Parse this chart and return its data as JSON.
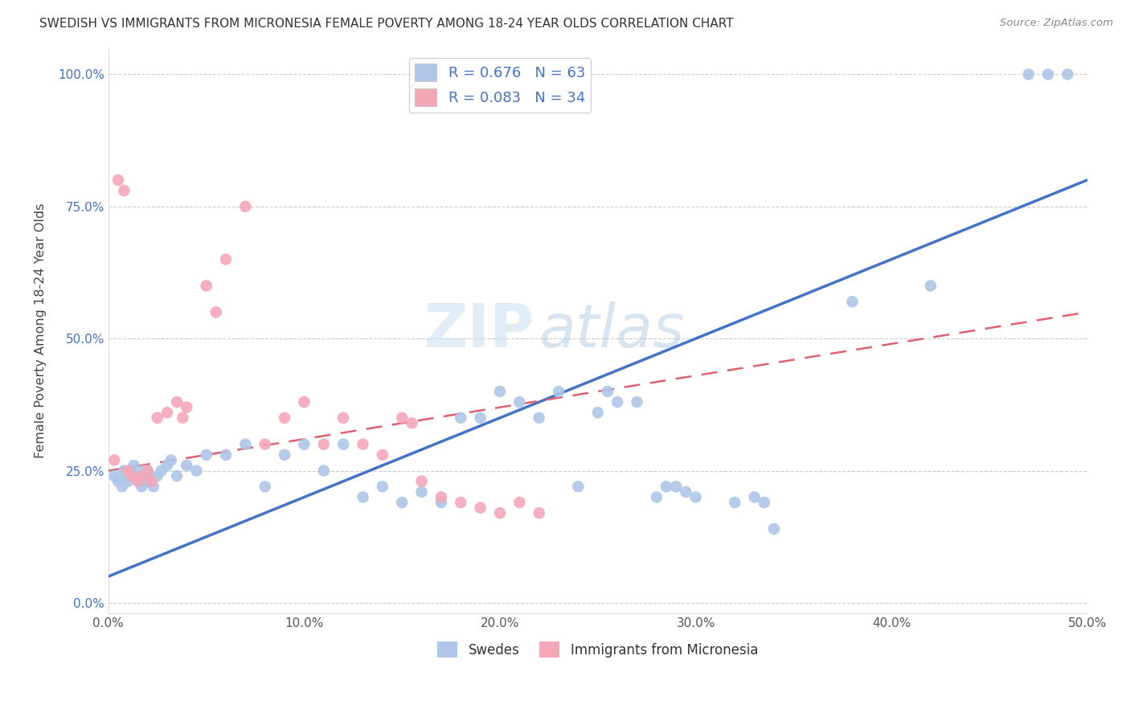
{
  "title": "SWEDISH VS IMMIGRANTS FROM MICRONESIA FEMALE POVERTY AMONG 18-24 YEAR OLDS CORRELATION CHART",
  "source": "Source: ZipAtlas.com",
  "ylabel": "Female Poverty Among 18-24 Year Olds",
  "x_min": 0.0,
  "x_max": 0.5,
  "y_ticks": [
    0.0,
    0.25,
    0.5,
    0.75,
    1.0
  ],
  "y_tick_labels": [
    "0.0%",
    "25.0%",
    "50.0%",
    "75.0%",
    "100.0%"
  ],
  "x_ticks": [
    0.0,
    0.1,
    0.2,
    0.3,
    0.4,
    0.5
  ],
  "x_tick_labels": [
    "0.0%",
    "10.0%",
    "20.0%",
    "30.0%",
    "40.0%",
    "50.0%"
  ],
  "swedes_color": "#aec6e8",
  "micronesia_color": "#f4a7b9",
  "swedes_line_color": "#4472c4",
  "micronesia_line_color": "#e06070",
  "R_swedes": 0.676,
  "N_swedes": 63,
  "R_micronesia": 0.083,
  "N_micronesia": 34,
  "watermark_zip": "ZIP",
  "watermark_atlas": "atlas",
  "legend_label_swedes": "Swedes",
  "legend_label_micronesia": "Immigrants from Micronesia",
  "swedes_x": [
    0.003,
    0.005,
    0.007,
    0.008,
    0.009,
    0.01,
    0.011,
    0.012,
    0.013,
    0.015,
    0.016,
    0.017,
    0.018,
    0.019,
    0.02,
    0.021,
    0.022,
    0.023,
    0.025,
    0.027,
    0.03,
    0.032,
    0.035,
    0.04,
    0.045,
    0.05,
    0.06,
    0.07,
    0.08,
    0.09,
    0.1,
    0.11,
    0.12,
    0.13,
    0.14,
    0.15,
    0.16,
    0.17,
    0.18,
    0.19,
    0.2,
    0.21,
    0.22,
    0.23,
    0.24,
    0.25,
    0.255,
    0.26,
    0.27,
    0.28,
    0.285,
    0.29,
    0.295,
    0.3,
    0.32,
    0.33,
    0.335,
    0.34,
    0.38,
    0.42,
    0.47,
    0.48,
    0.49
  ],
  "swedes_y": [
    0.24,
    0.23,
    0.22,
    0.25,
    0.24,
    0.23,
    0.25,
    0.24,
    0.26,
    0.24,
    0.23,
    0.22,
    0.25,
    0.23,
    0.25,
    0.24,
    0.23,
    0.22,
    0.24,
    0.25,
    0.26,
    0.27,
    0.24,
    0.26,
    0.25,
    0.28,
    0.28,
    0.3,
    0.22,
    0.28,
    0.3,
    0.25,
    0.3,
    0.2,
    0.22,
    0.19,
    0.21,
    0.19,
    0.35,
    0.35,
    0.4,
    0.38,
    0.35,
    0.4,
    0.22,
    0.36,
    0.4,
    0.38,
    0.38,
    0.2,
    0.22,
    0.22,
    0.21,
    0.2,
    0.19,
    0.2,
    0.19,
    0.14,
    0.57,
    0.6,
    1.0,
    1.0,
    1.0
  ],
  "micronesia_x": [
    0.003,
    0.005,
    0.008,
    0.01,
    0.012,
    0.015,
    0.018,
    0.02,
    0.022,
    0.025,
    0.03,
    0.035,
    0.038,
    0.04,
    0.05,
    0.055,
    0.06,
    0.07,
    0.08,
    0.09,
    0.1,
    0.11,
    0.12,
    0.13,
    0.14,
    0.15,
    0.155,
    0.16,
    0.17,
    0.18,
    0.19,
    0.2,
    0.21,
    0.22
  ],
  "micronesia_y": [
    0.27,
    0.8,
    0.78,
    0.25,
    0.24,
    0.23,
    0.24,
    0.25,
    0.23,
    0.35,
    0.36,
    0.38,
    0.35,
    0.37,
    0.6,
    0.55,
    0.65,
    0.75,
    0.3,
    0.35,
    0.38,
    0.3,
    0.35,
    0.3,
    0.28,
    0.35,
    0.34,
    0.23,
    0.2,
    0.19,
    0.18,
    0.17,
    0.19,
    0.17
  ]
}
